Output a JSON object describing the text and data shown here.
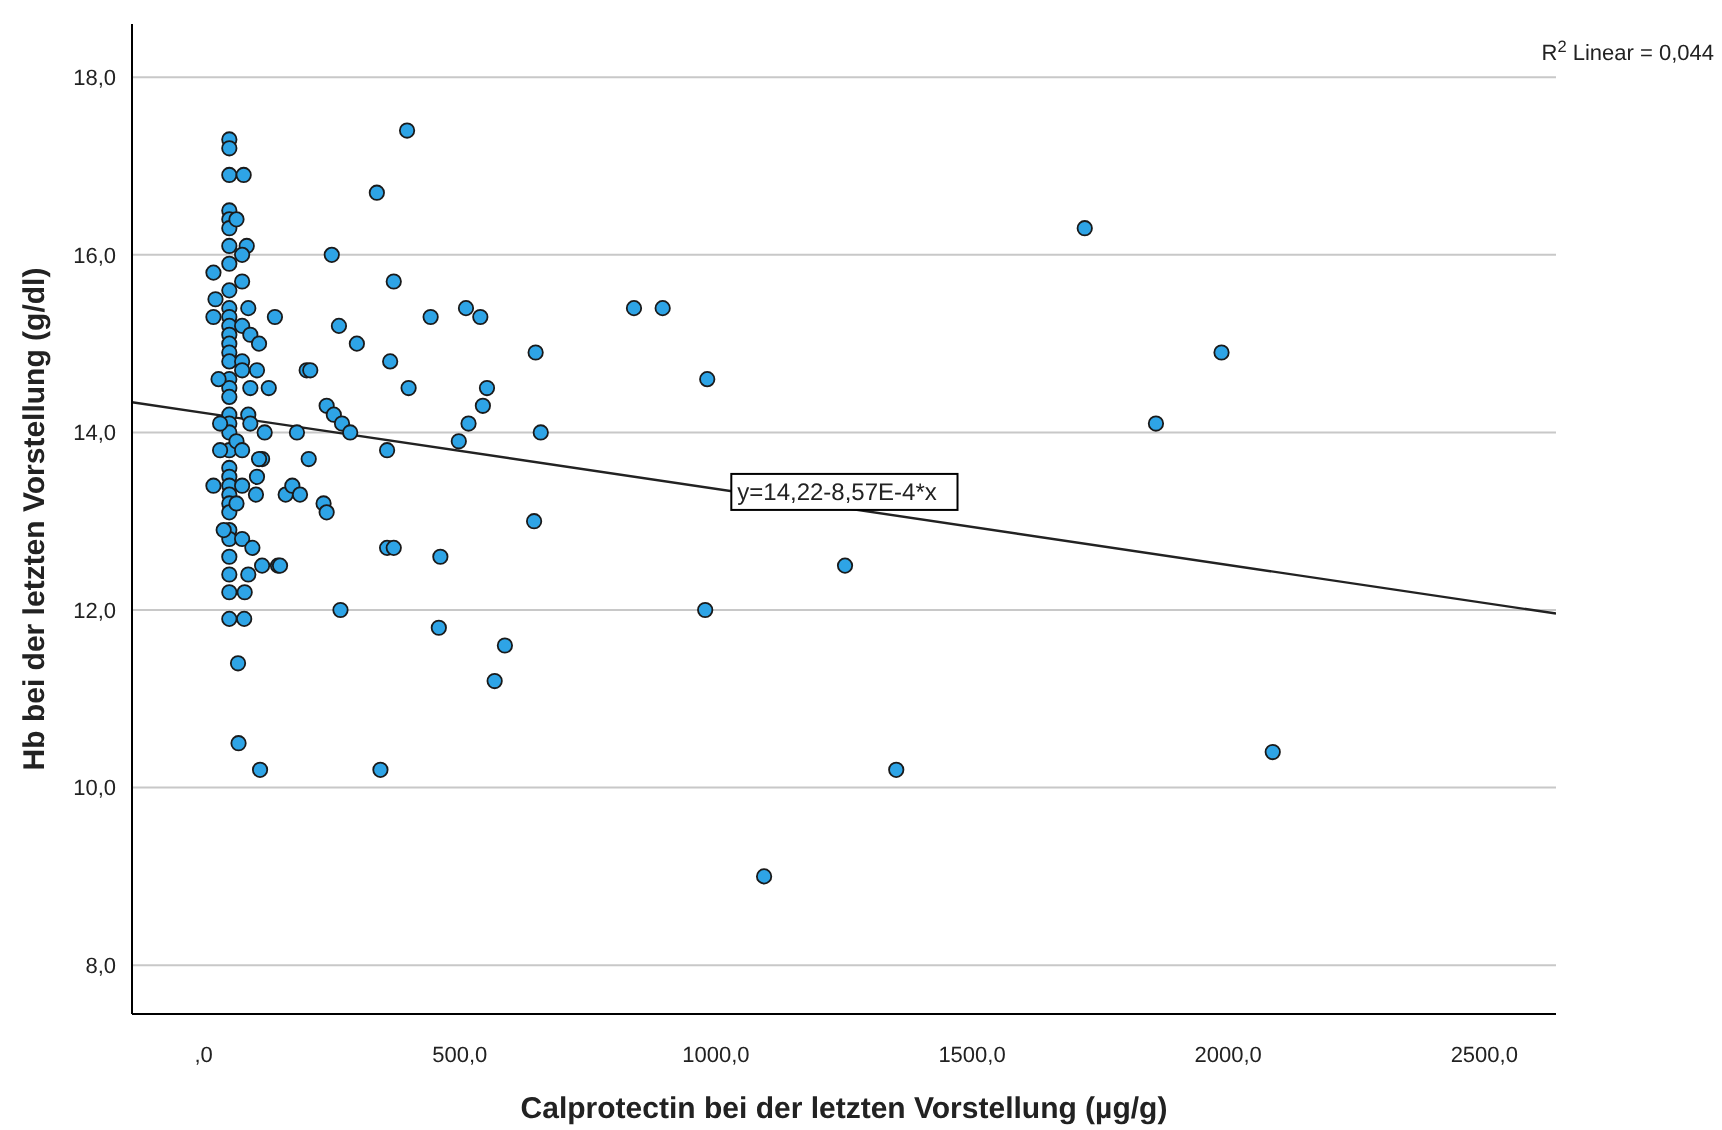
{
  "chart_data": {
    "type": "scatter",
    "xlabel": "Calprotectin bei der letzten Vorstellung (µg/g)",
    "ylabel": "Hb bei der letzten Vorstellung (g/dl)",
    "xlim": [
      -140,
      2640
    ],
    "ylim": [
      7.45,
      18.6
    ],
    "xticks": [
      {
        "value": 0,
        "label": ",0"
      },
      {
        "value": 500,
        "label": "500,0"
      },
      {
        "value": 1000,
        "label": "1000,0"
      },
      {
        "value": 1500,
        "label": "1500,0"
      },
      {
        "value": 2000,
        "label": "2000,0"
      },
      {
        "value": 2500,
        "label": "2500,0"
      }
    ],
    "yticks": [
      {
        "value": 8,
        "label": "8,0"
      },
      {
        "value": 10,
        "label": "10,0"
      },
      {
        "value": 12,
        "label": "12,0"
      },
      {
        "value": 14,
        "label": "14,0"
      },
      {
        "value": 16,
        "label": "16,0"
      },
      {
        "value": 18,
        "label": "18,0"
      }
    ],
    "grid": "y",
    "marker": "circle",
    "annotations": [
      "R$^{2}$ Linear = 0,044",
      {
        "text": "y=14,22-8,57E-4*x",
        "x": 1030,
        "y": 13.33
      }
    ],
    "series": [
      {
        "color": "#2ea4e6",
        "x": [
          50,
          50,
          50,
          50,
          50,
          50,
          50,
          50,
          50,
          50,
          50,
          50,
          50,
          50,
          50,
          50,
          50,
          50,
          50,
          50,
          50,
          50,
          50,
          50,
          50,
          50,
          50,
          50,
          50,
          50,
          50,
          50,
          50,
          50,
          50,
          78,
          64,
          84,
          75,
          19,
          75,
          23,
          19,
          87,
          139,
          75,
          91,
          108,
          29,
          75,
          75,
          104,
          91,
          127,
          201,
          208,
          32,
          87,
          91,
          119,
          182,
          32,
          64,
          75,
          114,
          108,
          205,
          19,
          75,
          104,
          102,
          160,
          173,
          188,
          234,
          240,
          39,
          64,
          75,
          95,
          114,
          145,
          149,
          87,
          80,
          79,
          67,
          68,
          110,
          345,
          267,
          250,
          338,
          371,
          264,
          299,
          364,
          240,
          254,
          270,
          286,
          358,
          358,
          371,
          397,
          443,
          512,
          540,
          840,
          896,
          400,
          553,
          545,
          517,
          498,
          648,
          658,
          983,
          645,
          462,
          459,
          588,
          568,
          979,
          1094,
          1720,
          1987,
          1859,
          1252,
          1352,
          2087
        ],
        "values": [
          17.3,
          17.2,
          16.9,
          16.5,
          16.4,
          16.3,
          16.1,
          15.9,
          15.6,
          15.4,
          15.3,
          15.2,
          15.1,
          15.0,
          14.9,
          14.8,
          14.6,
          14.5,
          14.4,
          14.2,
          14.1,
          14.0,
          13.8,
          13.6,
          13.5,
          13.4,
          13.3,
          13.2,
          13.1,
          12.9,
          12.8,
          12.6,
          12.4,
          12.2,
          11.9,
          16.9,
          16.4,
          16.1,
          16.0,
          15.8,
          15.7,
          15.5,
          15.3,
          15.4,
          15.3,
          15.2,
          15.1,
          15.0,
          14.6,
          14.8,
          14.7,
          14.7,
          14.5,
          14.5,
          14.7,
          14.7,
          14.1,
          14.2,
          14.1,
          14.0,
          14.0,
          13.8,
          13.9,
          13.8,
          13.7,
          13.7,
          13.7,
          13.4,
          13.4,
          13.5,
          13.3,
          13.3,
          13.4,
          13.3,
          13.2,
          13.1,
          12.9,
          13.2,
          12.8,
          12.7,
          12.5,
          12.5,
          12.5,
          12.4,
          12.2,
          11.9,
          11.4,
          10.5,
          10.2,
          10.2,
          12.0,
          16.0,
          16.7,
          15.7,
          15.2,
          15.0,
          14.8,
          14.3,
          14.2,
          14.1,
          14.0,
          13.8,
          12.7,
          12.7,
          17.4,
          15.3,
          15.4,
          15.3,
          15.4,
          15.4,
          14.5,
          14.5,
          14.3,
          14.1,
          13.9,
          14.9,
          14.0,
          14.6,
          13.0,
          12.6,
          11.8,
          11.6,
          11.2,
          12.0,
          9.0,
          16.3,
          14.9,
          14.1,
          12.5,
          10.2,
          10.4
        ]
      },
      {
        "type": "line",
        "color": "#222222",
        "marker": "none",
        "x": [
          -140,
          2640
        ],
        "values": [
          14.34,
          11.96
        ]
      }
    ]
  }
}
